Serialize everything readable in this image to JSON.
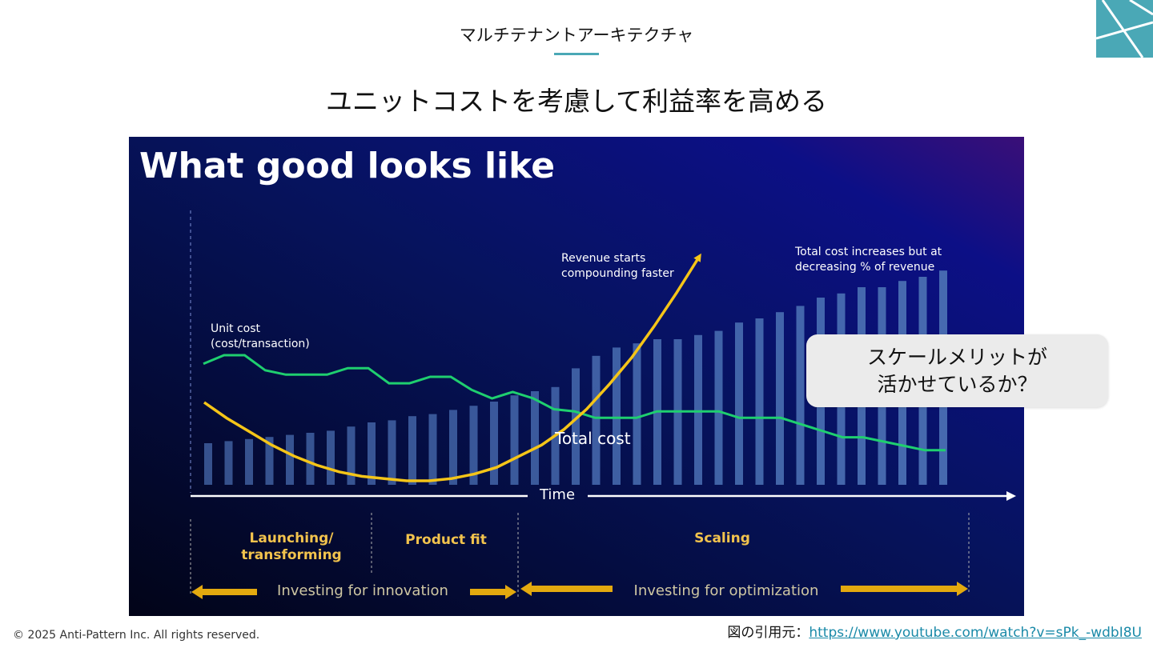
{
  "header": {
    "section_title": "マルチテナントアーキテクチャ",
    "slide_title": "ユニットコストを考慮して利益率を高める"
  },
  "callout": {
    "line1": "スケールメリットが",
    "line2": "活かせているか？"
  },
  "footer": {
    "copyright": "© 2025 Anti-Pattern Inc. All rights reserved.",
    "source_label": "図の引用元：",
    "source_url": "https://www.youtube.com/watch?v=sPk_-wdbI8U"
  },
  "colors": {
    "accent": "#4aa8b6",
    "revenue": "#f5c518",
    "unit_cost": "#1fcf6f",
    "bars": "#4a6fb3",
    "phase_arrow": "#e3a90f"
  },
  "chart_data": {
    "type": "bar",
    "title": "What good looks like",
    "xlabel": "Time",
    "grid": false,
    "series": [
      {
        "name": "Total cost",
        "type": "bar",
        "values": [
          20,
          21,
          22,
          23,
          24,
          25,
          26,
          28,
          30,
          31,
          33,
          34,
          36,
          38,
          40,
          43,
          45,
          47,
          56,
          62,
          66,
          68,
          70,
          70,
          72,
          74,
          78,
          80,
          83,
          86,
          90,
          92,
          95,
          95,
          98,
          100,
          103
        ]
      },
      {
        "name": "Unit cost\n(cost/transaction)",
        "type": "line",
        "values": [
          56,
          60,
          60,
          53,
          51,
          51,
          51,
          54,
          54,
          47,
          47,
          50,
          50,
          44,
          40,
          43,
          40,
          35,
          34,
          31,
          31,
          31,
          34,
          34,
          34,
          34,
          31,
          31,
          31,
          28,
          25,
          22,
          22,
          20,
          18,
          16,
          16
        ]
      },
      {
        "name": "Revenue",
        "type": "line",
        "values": [
          35,
          28,
          22,
          16,
          11,
          7,
          4,
          2,
          1,
          0,
          0,
          1,
          3,
          6,
          11,
          16,
          23,
          32,
          43,
          55,
          69,
          84,
          100
        ]
      }
    ],
    "annotations": [
      "Revenue starts\ncompounding faster",
      "Total cost increases but at\ndecreasing % of revenue",
      "Total cost"
    ],
    "phases": [
      "Launching/\ntransforming",
      "Product fit",
      "Scaling"
    ],
    "investments": [
      "Investing for innovation",
      "Investing for optimization"
    ]
  }
}
